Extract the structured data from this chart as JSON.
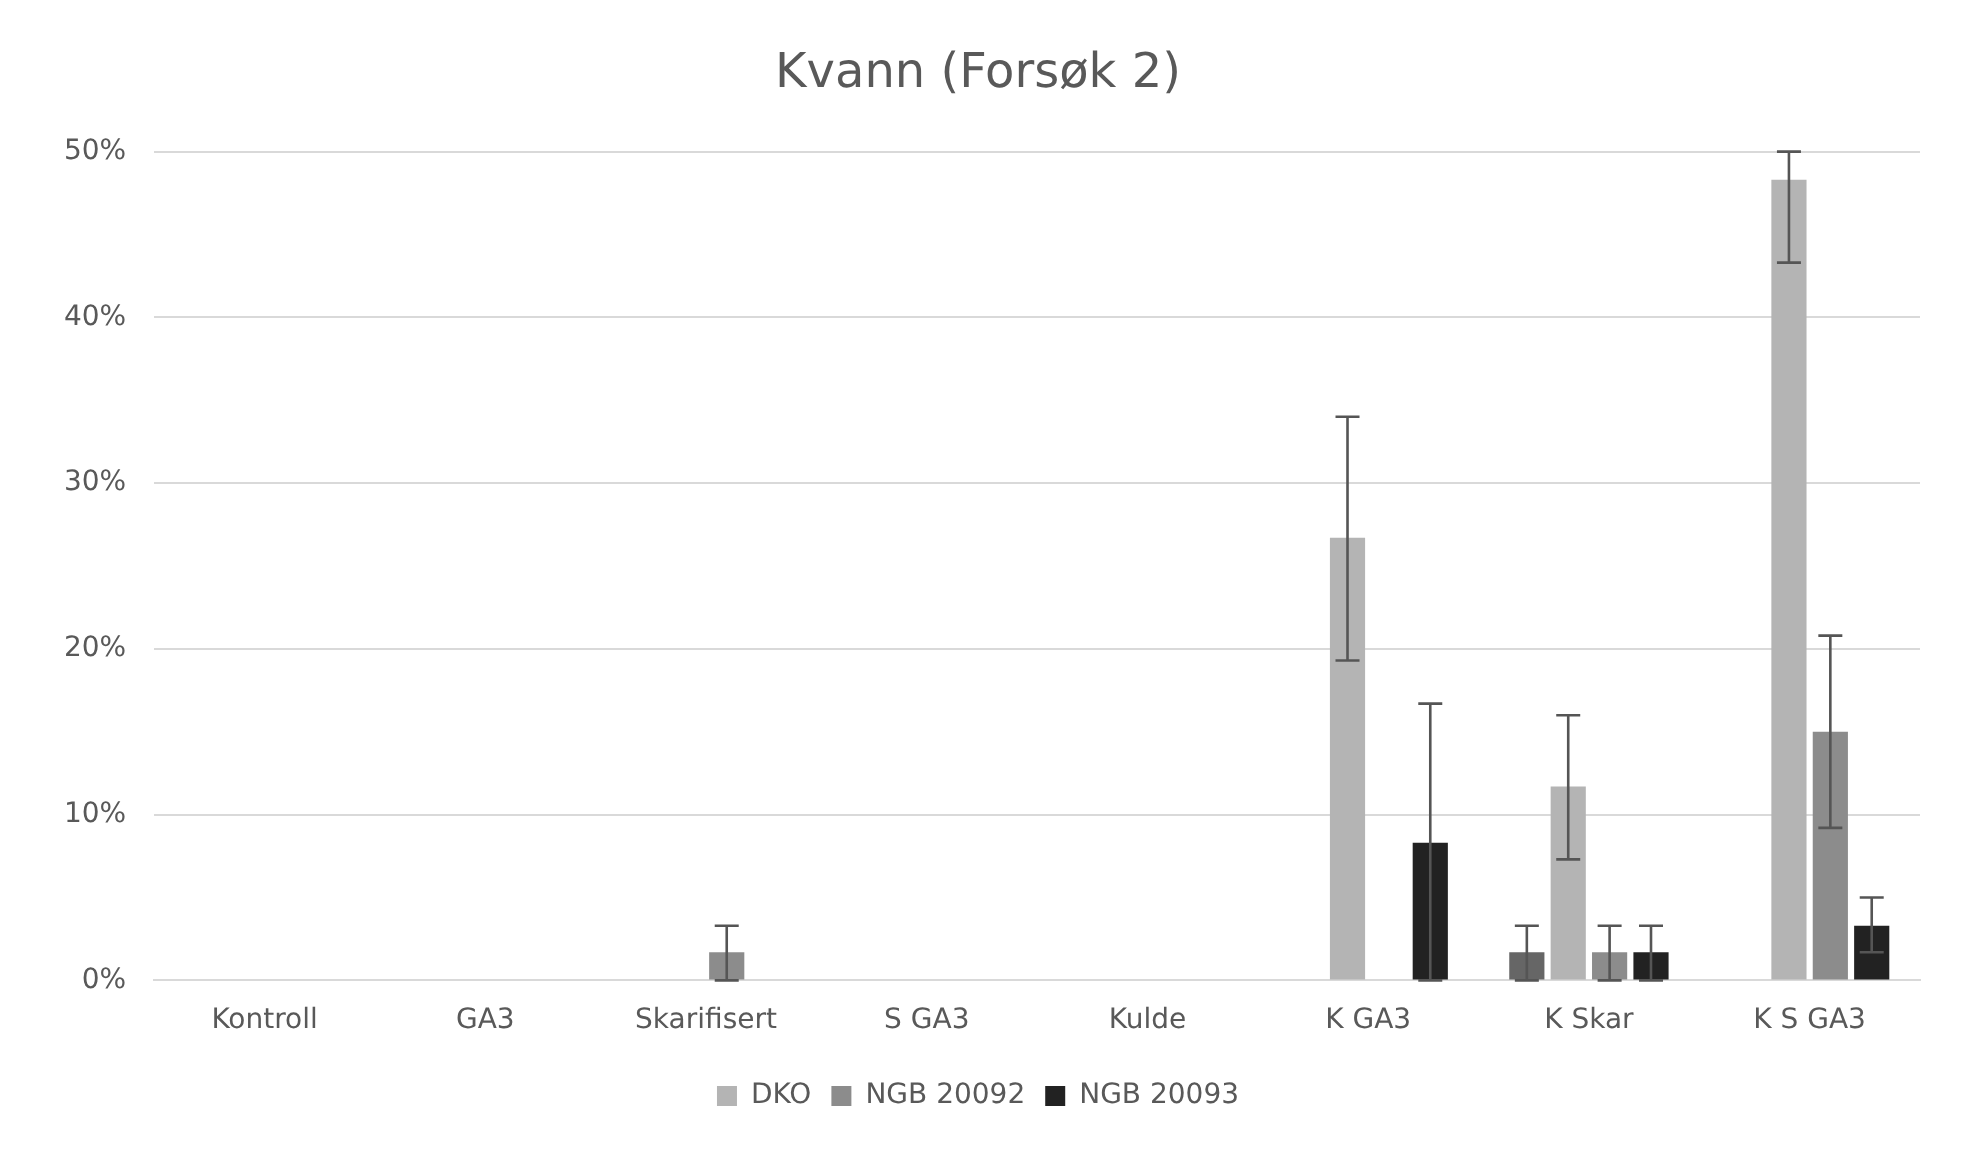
{
  "chart_data": {
    "type": "bar",
    "title": "Kvann (Forsøk 2)",
    "categories": [
      "Kontroll",
      "GA3",
      "Skarifisert",
      "S GA3",
      "Kulde",
      "K GA3",
      "K Skar",
      "K S GA3"
    ],
    "series": [
      {
        "color": "#666666",
        "values": [
          0,
          0,
          0,
          0,
          0,
          0,
          1.7,
          0
        ],
        "errors": [
          null,
          null,
          null,
          null,
          null,
          null,
          [
            0,
            3.3
          ],
          null
        ]
      },
      {
        "name": "DKO",
        "color": "#b4b4b4",
        "values": [
          0,
          0,
          0,
          0,
          0,
          26.7,
          11.7,
          48.3
        ],
        "errors": [
          null,
          null,
          null,
          null,
          null,
          [
            19.3,
            34
          ],
          [
            7.3,
            16
          ],
          [
            43.3,
            50
          ]
        ]
      },
      {
        "name": "NGB 20092",
        "color": "#8c8c8c",
        "values": [
          0,
          0,
          1.7,
          0,
          0,
          0,
          1.7,
          15
        ],
        "errors": [
          null,
          null,
          [
            0,
            3.3
          ],
          null,
          null,
          null,
          [
            0,
            3.3
          ],
          [
            9.2,
            20.8
          ]
        ]
      },
      {
        "name": "NGB 20093",
        "color": "#222222",
        "values": [
          0,
          0,
          0,
          0,
          0,
          8.3,
          1.7,
          3.3
        ],
        "errors": [
          null,
          null,
          null,
          null,
          null,
          [
            0,
            16.7
          ],
          [
            0,
            3.3
          ],
          [
            1.7,
            5
          ]
        ]
      }
    ],
    "ylim": [
      0,
      50
    ],
    "yticks": [
      {
        "value": 0,
        "label": "0%"
      },
      {
        "value": 10,
        "label": "10%"
      },
      {
        "value": 20,
        "label": "20%"
      },
      {
        "value": 30,
        "label": "30%"
      },
      {
        "value": 40,
        "label": "40%"
      },
      {
        "value": 50,
        "label": "50%"
      }
    ],
    "grid": "y",
    "legend": "bottom"
  }
}
